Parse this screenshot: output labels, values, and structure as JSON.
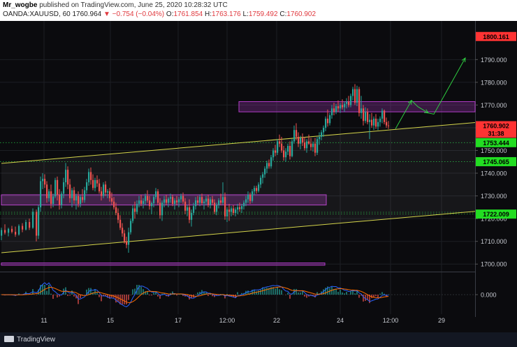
{
  "header": {
    "author": "Mr_wogbe",
    "published_text": " published on TradingView.com, June 25, 2020 10:28:32 UTC",
    "symbol": "OANDA:XAUUSD, 60",
    "price": " 1760.964 ",
    "change": "▼ −0.754 (−0.04%)",
    "o_label": " O:",
    "o_val": "1761.854",
    "h_label": " H:",
    "h_val": "1763.176",
    "l_label": " L:",
    "l_val": "1759.492",
    "c_label": " C:",
    "c_val": "1760.902"
  },
  "footer": {
    "logo_text": "TradingView"
  },
  "colors": {
    "background": "#0b0b0e",
    "up": "#26a69a",
    "down": "#ef5350",
    "channel": "#d4d44a",
    "zone": "#b13cc7",
    "arrow": "#2ecc40",
    "label_red": "#ff3333",
    "label_green": "#22dd22"
  },
  "chart_data": {
    "type": "candlestick",
    "symbol": "OANDA:XAUUSD",
    "interval": "60",
    "ylim": [
      1697,
      1807
    ],
    "y_ticks": [
      1700,
      1710,
      1720,
      1730,
      1740,
      1750,
      1760,
      1770,
      1780,
      1790
    ],
    "y_tick_labels": [
      "1700.000",
      "1710.000",
      "1720.000",
      "1730.000",
      "1740.000",
      "1750.000",
      "1760.000",
      "1770.000",
      "1780.000",
      "1790.000"
    ],
    "x_ticks": [
      {
        "t": 63,
        "label": "11"
      },
      {
        "t": 158,
        "label": "15"
      },
      {
        "t": 255,
        "label": "17"
      },
      {
        "t": 325,
        "label": "12:00"
      },
      {
        "t": 396,
        "label": "22"
      },
      {
        "t": 487,
        "label": "24"
      },
      {
        "t": 559,
        "label": "12:00"
      },
      {
        "t": 632,
        "label": "29"
      }
    ],
    "price_labels": [
      {
        "value": 1800.161,
        "text": "1800.161",
        "color": "#ff3333"
      },
      {
        "value": 1760.902,
        "text": "1760.902",
        "color": "#ff3333"
      },
      {
        "value": 1757.6,
        "text": "31:38",
        "color": "#ff3333"
      },
      {
        "value": 1753.444,
        "text": "1753.444",
        "color": "#22dd22"
      },
      {
        "value": 1745.065,
        "text": "1745.065",
        "color": "#22dd22"
      },
      {
        "value": 1722.009,
        "text": "1722.009",
        "color": "#22dd22"
      }
    ],
    "h_levels": [
      1753.444,
      1745.065,
      1722.009,
      1722.8
    ],
    "zones": [
      {
        "t0": 342,
        "t1": 680,
        "y0": 1767.0,
        "y1": 1771.5
      },
      {
        "t0": 2,
        "t1": 467,
        "y0": 1726.0,
        "y1": 1730.5
      },
      {
        "t0": 2,
        "t1": 465,
        "y0": 1699.5,
        "y1": 1700.5
      }
    ],
    "channel_lines": [
      {
        "t0": 2,
        "y0": 1744.3,
        "t1": 680,
        "y1": 1762.3
      },
      {
        "t0": 2,
        "y0": 1705.0,
        "t1": 680,
        "y1": 1723.2
      }
    ],
    "projection_path": [
      [
        566,
        1759.5
      ],
      [
        589,
        1772.0
      ],
      [
        598,
        1769.3
      ],
      [
        613,
        1766.5
      ],
      [
        621,
        1766.0
      ],
      [
        666,
        1790.7
      ]
    ],
    "candles": [
      [
        2,
        1712.5,
        1716.0,
        1710.5,
        1715.0
      ],
      [
        7,
        1715.0,
        1717.5,
        1713.0,
        1713.8
      ],
      [
        12,
        1713.8,
        1716.0,
        1712.2,
        1715.5
      ],
      [
        17,
        1715.5,
        1716.8,
        1713.5,
        1714.2
      ],
      [
        22,
        1714.2,
        1716.5,
        1712.0,
        1713.0
      ],
      [
        27,
        1713.0,
        1717.5,
        1712.5,
        1716.8
      ],
      [
        32,
        1716.8,
        1718.0,
        1714.0,
        1715.2
      ],
      [
        37,
        1715.2,
        1719.5,
        1714.8,
        1718.5
      ],
      [
        42,
        1718.5,
        1720.0,
        1715.0,
        1716.0
      ],
      [
        47,
        1716.0,
        1724.5,
        1715.5,
        1723.0
      ],
      [
        52,
        1723.0,
        1724.0,
        1710.0,
        1712.5
      ],
      [
        55,
        1712.5,
        1726.0,
        1711.0,
        1725.0
      ],
      [
        58,
        1725.0,
        1738.5,
        1723.0,
        1736.5
      ],
      [
        61,
        1736.5,
        1740.0,
        1733.0,
        1737.5
      ],
      [
        64,
        1737.5,
        1739.5,
        1733.5,
        1735.0
      ],
      [
        67,
        1735.0,
        1736.5,
        1727.0,
        1729.0
      ],
      [
        70,
        1729.0,
        1733.0,
        1727.5,
        1732.0
      ],
      [
        73,
        1732.0,
        1735.0,
        1724.5,
        1726.5
      ],
      [
        76,
        1726.5,
        1731.0,
        1725.0,
        1729.8
      ],
      [
        79,
        1729.8,
        1738.0,
        1729.0,
        1737.0
      ],
      [
        82,
        1737.0,
        1738.5,
        1728.0,
        1730.5
      ],
      [
        85,
        1730.5,
        1733.0,
        1724.0,
        1726.0
      ],
      [
        88,
        1726.0,
        1732.0,
        1724.5,
        1731.0
      ],
      [
        91,
        1731.0,
        1738.0,
        1729.0,
        1736.0
      ],
      [
        94,
        1736.0,
        1744.5,
        1734.0,
        1741.5
      ],
      [
        97,
        1741.5,
        1743.0,
        1733.0,
        1735.0
      ],
      [
        100,
        1735.0,
        1737.5,
        1727.0,
        1729.0
      ],
      [
        103,
        1729.0,
        1733.5,
        1725.0,
        1732.5
      ],
      [
        106,
        1732.5,
        1734.0,
        1726.5,
        1728.0
      ],
      [
        109,
        1728.0,
        1731.0,
        1724.0,
        1730.0
      ],
      [
        112,
        1730.0,
        1732.0,
        1725.0,
        1726.5
      ],
      [
        115,
        1726.5,
        1730.5,
        1725.0,
        1729.5
      ],
      [
        118,
        1729.5,
        1733.0,
        1727.0,
        1728.2
      ],
      [
        121,
        1728.2,
        1734.0,
        1727.0,
        1732.5
      ],
      [
        124,
        1732.5,
        1737.5,
        1731.0,
        1736.0
      ],
      [
        127,
        1736.0,
        1742.0,
        1734.5,
        1740.5
      ],
      [
        130,
        1740.5,
        1742.5,
        1735.0,
        1737.0
      ],
      [
        133,
        1737.0,
        1739.5,
        1732.5,
        1733.5
      ],
      [
        136,
        1733.5,
        1738.0,
        1732.0,
        1737.0
      ],
      [
        139,
        1737.0,
        1739.0,
        1734.0,
        1735.5
      ],
      [
        142,
        1735.5,
        1737.5,
        1731.0,
        1732.0
      ],
      [
        145,
        1732.0,
        1734.0,
        1728.0,
        1730.0
      ],
      [
        148,
        1730.0,
        1736.0,
        1729.0,
        1735.0
      ],
      [
        151,
        1735.0,
        1736.5,
        1730.0,
        1731.5
      ],
      [
        154,
        1731.5,
        1733.0,
        1729.0,
        1732.0
      ],
      [
        157,
        1732.0,
        1733.5,
        1727.5,
        1729.0
      ],
      [
        160,
        1729.0,
        1731.5,
        1726.0,
        1727.5
      ],
      [
        163,
        1727.5,
        1729.5,
        1724.0,
        1725.0
      ],
      [
        166,
        1725.0,
        1727.0,
        1721.5,
        1722.5
      ],
      [
        169,
        1722.5,
        1724.5,
        1718.0,
        1719.5
      ],
      [
        172,
        1719.5,
        1721.5,
        1715.0,
        1716.0
      ],
      [
        175,
        1716.0,
        1718.0,
        1712.0,
        1713.5
      ],
      [
        178,
        1713.5,
        1715.0,
        1709.0,
        1710.0
      ],
      [
        181,
        1710.0,
        1712.0,
        1707.0,
        1708.5
      ],
      [
        184,
        1708.5,
        1716.0,
        1705.0,
        1714.0
      ],
      [
        187,
        1714.0,
        1720.0,
        1713.0,
        1719.0
      ],
      [
        190,
        1719.0,
        1726.0,
        1718.0,
        1724.5
      ],
      [
        193,
        1724.5,
        1727.5,
        1720.0,
        1723.0
      ],
      [
        196,
        1723.0,
        1728.0,
        1722.0,
        1726.5
      ],
      [
        199,
        1726.5,
        1730.0,
        1725.0,
        1728.0
      ],
      [
        202,
        1728.0,
        1730.5,
        1725.5,
        1726.5
      ],
      [
        205,
        1726.5,
        1729.0,
        1724.5,
        1727.8
      ],
      [
        208,
        1727.8,
        1731.0,
        1726.0,
        1730.0
      ],
      [
        211,
        1730.0,
        1732.5,
        1727.0,
        1728.0
      ],
      [
        214,
        1728.0,
        1730.0,
        1724.0,
        1725.5
      ],
      [
        217,
        1725.5,
        1727.5,
        1722.0,
        1726.8
      ],
      [
        220,
        1726.8,
        1730.5,
        1725.0,
        1729.5
      ],
      [
        223,
        1729.5,
        1733.5,
        1728.5,
        1732.0
      ],
      [
        226,
        1732.0,
        1733.0,
        1726.0,
        1727.0
      ],
      [
        229,
        1727.0,
        1729.0,
        1720.0,
        1721.5
      ],
      [
        232,
        1721.5,
        1728.0,
        1719.0,
        1727.0
      ],
      [
        235,
        1727.0,
        1730.0,
        1725.0,
        1728.5
      ],
      [
        238,
        1728.5,
        1730.5,
        1726.0,
        1727.0
      ],
      [
        241,
        1727.0,
        1729.5,
        1725.0,
        1728.8
      ],
      [
        244,
        1728.8,
        1731.0,
        1727.0,
        1729.5
      ],
      [
        247,
        1729.5,
        1730.5,
        1725.5,
        1726.5
      ],
      [
        250,
        1726.5,
        1729.0,
        1724.0,
        1728.0
      ],
      [
        253,
        1728.0,
        1730.0,
        1726.0,
        1727.2
      ],
      [
        256,
        1727.2,
        1729.5,
        1725.0,
        1728.5
      ],
      [
        259,
        1728.5,
        1731.0,
        1727.0,
        1730.0
      ],
      [
        262,
        1730.0,
        1731.5,
        1726.5,
        1727.5
      ],
      [
        265,
        1727.5,
        1729.0,
        1722.0,
        1723.5
      ],
      [
        268,
        1723.5,
        1726.0,
        1721.0,
        1725.0
      ],
      [
        271,
        1725.0,
        1728.5,
        1718.0,
        1719.5
      ],
      [
        274,
        1719.5,
        1724.0,
        1716.5,
        1722.5
      ],
      [
        277,
        1722.5,
        1727.0,
        1721.5,
        1725.5
      ],
      [
        280,
        1725.5,
        1729.5,
        1724.0,
        1728.0
      ],
      [
        283,
        1728.0,
        1730.0,
        1726.0,
        1727.0
      ],
      [
        286,
        1727.0,
        1730.5,
        1725.5,
        1729.5
      ],
      [
        289,
        1729.5,
        1731.0,
        1726.0,
        1726.8
      ],
      [
        292,
        1726.8,
        1728.5,
        1724.0,
        1727.5
      ],
      [
        295,
        1727.5,
        1730.0,
        1726.0,
        1728.8
      ],
      [
        298,
        1728.8,
        1730.5,
        1725.0,
        1726.0
      ],
      [
        301,
        1726.0,
        1729.5,
        1724.5,
        1728.5
      ],
      [
        304,
        1728.5,
        1730.0,
        1726.0,
        1727.0
      ],
      [
        307,
        1727.0,
        1728.5,
        1722.0,
        1723.0
      ],
      [
        310,
        1723.0,
        1727.0,
        1721.5,
        1726.0
      ],
      [
        313,
        1726.0,
        1729.0,
        1724.5,
        1728.0
      ],
      [
        316,
        1728.0,
        1731.0,
        1726.0,
        1727.0
      ],
      [
        319,
        1727.0,
        1736.0,
        1726.0,
        1729.5
      ],
      [
        322,
        1729.5,
        1731.5,
        1719.5,
        1721.0
      ],
      [
        325,
        1721.0,
        1725.0,
        1718.5,
        1724.0
      ],
      [
        328,
        1724.0,
        1726.5,
        1719.0,
        1723.0
      ],
      [
        331,
        1723.0,
        1725.5,
        1721.0,
        1724.5
      ],
      [
        334,
        1724.5,
        1726.0,
        1721.5,
        1722.5
      ],
      [
        337,
        1722.5,
        1725.0,
        1721.0,
        1724.0
      ],
      [
        340,
        1724.0,
        1726.5,
        1722.0,
        1725.0
      ],
      [
        343,
        1725.0,
        1727.0,
        1723.0,
        1724.2
      ],
      [
        346,
        1724.2,
        1726.5,
        1722.5,
        1725.5
      ],
      [
        349,
        1725.5,
        1728.0,
        1724.0,
        1727.0
      ],
      [
        352,
        1727.0,
        1730.0,
        1725.5,
        1728.5
      ],
      [
        355,
        1728.5,
        1732.0,
        1727.0,
        1730.5
      ],
      [
        358,
        1730.5,
        1731.5,
        1726.5,
        1727.8
      ],
      [
        361,
        1727.8,
        1733.0,
        1727.0,
        1732.0
      ],
      [
        364,
        1732.0,
        1734.5,
        1730.5,
        1733.5
      ],
      [
        367,
        1733.5,
        1734.5,
        1731.0,
        1732.2
      ],
      [
        370,
        1732.2,
        1736.0,
        1731.5,
        1735.0
      ],
      [
        373,
        1735.0,
        1739.0,
        1733.5,
        1738.0
      ],
      [
        376,
        1738.0,
        1740.5,
        1735.5,
        1739.5
      ],
      [
        379,
        1739.5,
        1743.0,
        1738.0,
        1742.0
      ],
      [
        382,
        1742.0,
        1745.5,
        1740.0,
        1744.5
      ],
      [
        385,
        1744.5,
        1746.0,
        1742.0,
        1743.0
      ],
      [
        388,
        1743.0,
        1748.0,
        1742.0,
        1747.0
      ],
      [
        391,
        1747.0,
        1751.0,
        1745.5,
        1750.0
      ],
      [
        394,
        1750.0,
        1752.5,
        1747.5,
        1749.0
      ],
      [
        397,
        1749.0,
        1755.0,
        1748.0,
        1754.0
      ],
      [
        400,
        1754.0,
        1757.0,
        1751.5,
        1753.0
      ],
      [
        403,
        1753.0,
        1756.0,
        1749.0,
        1750.0
      ],
      [
        406,
        1750.0,
        1752.0,
        1745.5,
        1747.0
      ],
      [
        409,
        1747.0,
        1751.0,
        1745.0,
        1749.5
      ],
      [
        412,
        1749.5,
        1753.0,
        1748.0,
        1752.0
      ],
      [
        415,
        1752.0,
        1754.0,
        1746.0,
        1747.5
      ],
      [
        418,
        1747.5,
        1755.0,
        1747.0,
        1754.0
      ],
      [
        421,
        1754.0,
        1761.0,
        1753.0,
        1759.0
      ],
      [
        424,
        1759.0,
        1762.0,
        1754.5,
        1756.0
      ],
      [
        427,
        1756.0,
        1758.0,
        1751.5,
        1753.0
      ],
      [
        430,
        1753.0,
        1756.5,
        1750.5,
        1755.5
      ],
      [
        433,
        1755.5,
        1757.5,
        1752.0,
        1753.5
      ],
      [
        436,
        1753.5,
        1756.0,
        1750.0,
        1751.0
      ],
      [
        439,
        1751.0,
        1755.0,
        1749.0,
        1754.0
      ],
      [
        442,
        1754.0,
        1757.0,
        1752.5,
        1753.0
      ],
      [
        445,
        1753.0,
        1755.5,
        1750.0,
        1751.5
      ],
      [
        448,
        1751.5,
        1754.0,
        1749.5,
        1753.0
      ],
      [
        451,
        1753.0,
        1755.5,
        1747.5,
        1749.0
      ],
      [
        454,
        1749.0,
        1756.0,
        1748.0,
        1755.0
      ],
      [
        457,
        1755.0,
        1758.0,
        1752.5,
        1756.0
      ],
      [
        460,
        1756.0,
        1759.0,
        1754.5,
        1758.0
      ],
      [
        463,
        1758.0,
        1761.0,
        1756.0,
        1760.0
      ],
      [
        466,
        1760.0,
        1765.0,
        1758.5,
        1764.0
      ],
      [
        469,
        1764.0,
        1768.0,
        1760.5,
        1762.0
      ],
      [
        472,
        1762.0,
        1766.5,
        1761.0,
        1765.5
      ],
      [
        475,
        1765.5,
        1770.0,
        1764.0,
        1768.5
      ],
      [
        478,
        1768.5,
        1771.0,
        1765.5,
        1767.0
      ],
      [
        481,
        1767.0,
        1770.5,
        1766.0,
        1769.5
      ],
      [
        484,
        1769.5,
        1772.0,
        1767.0,
        1768.5
      ],
      [
        487,
        1768.5,
        1771.0,
        1766.5,
        1770.0
      ],
      [
        490,
        1770.0,
        1772.5,
        1768.0,
        1769.0
      ],
      [
        493,
        1769.0,
        1771.5,
        1767.0,
        1770.5
      ],
      [
        496,
        1770.5,
        1773.0,
        1768.5,
        1771.5
      ],
      [
        499,
        1771.5,
        1774.0,
        1769.0,
        1770.0
      ],
      [
        502,
        1770.0,
        1775.0,
        1769.0,
        1774.0
      ],
      [
        505,
        1774.0,
        1778.0,
        1772.0,
        1777.0
      ],
      [
        508,
        1777.0,
        1779.2,
        1770.0,
        1771.0
      ],
      [
        511,
        1771.0,
        1778.5,
        1769.5,
        1777.0
      ],
      [
        514,
        1777.0,
        1778.0,
        1765.0,
        1766.5
      ],
      [
        517,
        1766.5,
        1774.0,
        1764.0,
        1768.5
      ],
      [
        520,
        1768.5,
        1770.0,
        1761.0,
        1763.0
      ],
      [
        523,
        1763.0,
        1769.0,
        1762.0,
        1767.0
      ],
      [
        526,
        1767.0,
        1768.5,
        1761.5,
        1762.5
      ],
      [
        529,
        1762.5,
        1766.0,
        1755.0,
        1763.5
      ],
      [
        532,
        1763.5,
        1766.5,
        1760.0,
        1761.0
      ],
      [
        535,
        1761.0,
        1765.0,
        1759.0,
        1764.0
      ],
      [
        538,
        1764.0,
        1766.0,
        1759.5,
        1760.5
      ],
      [
        541,
        1760.5,
        1764.0,
        1759.0,
        1762.5
      ],
      [
        544,
        1762.5,
        1765.0,
        1760.5,
        1764.0
      ],
      [
        547,
        1764.0,
        1768.5,
        1762.0,
        1767.5
      ],
      [
        550,
        1767.5,
        1768.0,
        1761.5,
        1762.5
      ],
      [
        553,
        1762.5,
        1764.5,
        1760.0,
        1761.0
      ],
      [
        556,
        1761.0,
        1763.0,
        1759.5,
        1760.9
      ]
    ]
  }
}
